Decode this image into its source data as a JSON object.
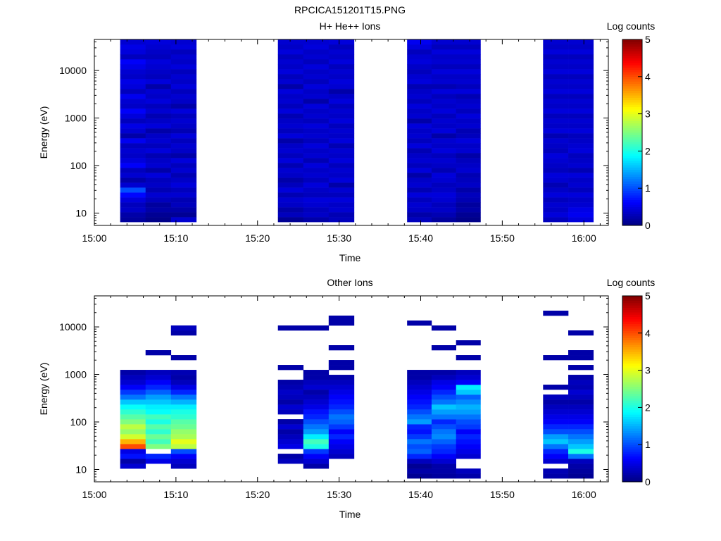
{
  "figure": {
    "title": "RPCICA151201T15.PNG"
  },
  "chart_data": [
    {
      "type": "heatmap",
      "title": "H+ He++ Ions",
      "xlabel": "Time",
      "ylabel": "Energy (eV)",
      "y_scale": "log",
      "x_range": [
        "15:00",
        "16:03"
      ],
      "y_range": [
        5.5,
        45000
      ],
      "x_ticks": [
        "15:00",
        "15:10",
        "15:20",
        "15:30",
        "15:40",
        "15:50",
        "16:00"
      ],
      "y_ticks": [
        "10",
        "100",
        "1000",
        "10000"
      ],
      "colorbar": {
        "label": "Log counts",
        "range": [
          0,
          5
        ],
        "ticks": [
          "0",
          "1",
          "2",
          "3",
          "4",
          "5"
        ],
        "colormap": "jet"
      },
      "grid": false,
      "sweeps": [
        {
          "t_start": "15:03:10",
          "t_end": "15:12:30",
          "columns": 3,
          "log_counts": [
            [
              0.15,
              0.2,
              0.35,
              0.3,
              0.45,
              0.65,
              1.0,
              0.4,
              0.2,
              0.4,
              0.3,
              0.6,
              0.45,
              0.35,
              0.4,
              0.3,
              0.55,
              0.2,
              0.4,
              0.5,
              0.3,
              0.45,
              0.6,
              0.35,
              0.4,
              0.55,
              0.3,
              0.45,
              0.5,
              0.35,
              0.4,
              0.5,
              0.6,
              0.3,
              0.45,
              0.5,
              0.4
            ],
            [
              0.05,
              0.1,
              0.2,
              0.15,
              0.3,
              0.4,
              0.25,
              0.35,
              0.3,
              0.45,
              0.2,
              0.4,
              0.35,
              0.25,
              0.45,
              0.3,
              0.4,
              0.35,
              0.2,
              0.45,
              0.35,
              0.25,
              0.4,
              0.3,
              0.45,
              0.35,
              0.4,
              0.2,
              0.45,
              0.3,
              0.35,
              0.4,
              0.45,
              0.3,
              0.35,
              0.4,
              0.45
            ],
            [
              0.4,
              0.1,
              0.2,
              0.3,
              0.25,
              0.4,
              0.3,
              0.45,
              0.35,
              0.25,
              0.4,
              0.3,
              0.45,
              0.2,
              0.35,
              0.4,
              0.3,
              0.45,
              0.25,
              0.35,
              0.4,
              0.3,
              0.45,
              0.2,
              0.35,
              0.4,
              0.3,
              0.45,
              0.35,
              0.4,
              0.3,
              0.45,
              0.35,
              0.4,
              0.3,
              0.45,
              0.4
            ]
          ]
        },
        {
          "t_start": "15:22:30",
          "t_end": "15:31:50",
          "columns": 3,
          "log_counts": [
            [
              0.1,
              0.3,
              0.2,
              0.35,
              0.4,
              0.25,
              0.45,
              0.3,
              0.2,
              0.35,
              0.4,
              0.25,
              0.45,
              0.3,
              0.4,
              0.35,
              0.2,
              0.45,
              0.3,
              0.4,
              0.35,
              0.25,
              0.45,
              0.3,
              0.4,
              0.35,
              0.45,
              0.2,
              0.4,
              0.3,
              0.45,
              0.35,
              0.4,
              0.3,
              0.45,
              0.35,
              0.4
            ],
            [
              0.2,
              0.35,
              0.3,
              0.4,
              0.45,
              0.3,
              0.35,
              0.45,
              0.3,
              0.4,
              0.35,
              0.45,
              0.25,
              0.4,
              0.35,
              0.45,
              0.3,
              0.4,
              0.35,
              0.45,
              0.3,
              0.4,
              0.35,
              0.45,
              0.2,
              0.4,
              0.35,
              0.45,
              0.3,
              0.4,
              0.35,
              0.45,
              0.3,
              0.4,
              0.35,
              0.45,
              0.4
            ],
            [
              0.3,
              0.25,
              0.4,
              0.35,
              0.45,
              0.3,
              0.4,
              0.2,
              0.45,
              0.35,
              0.4,
              0.3,
              0.45,
              0.35,
              0.4,
              0.25,
              0.45,
              0.35,
              0.4,
              0.3,
              0.45,
              0.35,
              0.4,
              0.3,
              0.45,
              0.35,
              0.2,
              0.4,
              0.45,
              0.35,
              0.4,
              0.3,
              0.45,
              0.35,
              0.4,
              0.3,
              0.45
            ]
          ]
        },
        {
          "t_start": "15:38:20",
          "t_end": "15:47:20",
          "columns": 3,
          "log_counts": [
            [
              0.3,
              0.2,
              0.35,
              0.4,
              0.3,
              0.45,
              0.25,
              0.4,
              0.35,
              0.2,
              0.45,
              0.3,
              0.4,
              0.35,
              0.25,
              0.45,
              0.3,
              0.4,
              0.35,
              0.45,
              0.2,
              0.4,
              0.35,
              0.45,
              0.3,
              0.4,
              0.35,
              0.25,
              0.45,
              0.4,
              0.3,
              0.35,
              0.45,
              0.4,
              0.3,
              0.45,
              0.55
            ],
            [
              0.15,
              0.25,
              0.35,
              0.3,
              0.4,
              0.45,
              0.35,
              0.3,
              0.4,
              0.45,
              0.25,
              0.35,
              0.4,
              0.3,
              0.45,
              0.35,
              0.4,
              0.2,
              0.45,
              0.35,
              0.4,
              0.3,
              0.45,
              0.35,
              0.4,
              0.3,
              0.45,
              0.25,
              0.4,
              0.35,
              0.45,
              0.3,
              0.4,
              0.35,
              0.45,
              0.3,
              0.4
            ],
            [
              0.05,
              0.1,
              0.2,
              0.15,
              0.25,
              0.3,
              0.2,
              0.35,
              0.3,
              0.25,
              0.4,
              0.35,
              0.3,
              0.2,
              0.4,
              0.35,
              0.45,
              0.3,
              0.25,
              0.4,
              0.35,
              0.45,
              0.3,
              0.4,
              0.35,
              0.25,
              0.45,
              0.3,
              0.4,
              0.35,
              0.45,
              0.3,
              0.4,
              0.35,
              0.45,
              0.3,
              0.4
            ]
          ]
        },
        {
          "t_start": "15:55:00",
          "t_end": "16:01:10",
          "columns": 2,
          "log_counts": [
            [
              0.3,
              0.45,
              0.35,
              0.4,
              0.3,
              0.45,
              0.35,
              0.25,
              0.4,
              0.45,
              0.3,
              0.35,
              0.4,
              0.45,
              0.3,
              0.35,
              0.4,
              0.25,
              0.45,
              0.35,
              0.4,
              0.3,
              0.45,
              0.35,
              0.4,
              0.3,
              0.45,
              0.35,
              0.4,
              0.3,
              0.45,
              0.35,
              0.4,
              0.3,
              0.45,
              0.35,
              0.4
            ],
            [
              0.45,
              0.55,
              0.5,
              0.4,
              0.35,
              0.45,
              0.3,
              0.4,
              0.35,
              0.45,
              0.25,
              0.4,
              0.35,
              0.3,
              0.45,
              0.4,
              0.35,
              0.3,
              0.45,
              0.35,
              0.4,
              0.3,
              0.45,
              0.35,
              0.4,
              0.3,
              0.45,
              0.35,
              0.4,
              0.3,
              0.45,
              0.35,
              0.4,
              0.3,
              0.45,
              0.35,
              0.4
            ]
          ]
        }
      ]
    },
    {
      "type": "heatmap",
      "title": "Other Ions",
      "xlabel": "Time",
      "ylabel": "Energy (eV)",
      "y_scale": "log",
      "x_range": [
        "15:00",
        "16:03"
      ],
      "y_range": [
        5.5,
        45000
      ],
      "x_ticks": [
        "15:00",
        "15:10",
        "15:20",
        "15:30",
        "15:40",
        "15:50",
        "16:00"
      ],
      "y_ticks": [
        "10",
        "100",
        "1000",
        "10000"
      ],
      "colorbar": {
        "label": "Log counts",
        "range": [
          0,
          5
        ],
        "ticks": [
          "0",
          "1",
          "2",
          "3",
          "4",
          "5"
        ],
        "colormap": "jet"
      },
      "grid": false,
      "sweeps": [
        {
          "t_start": "15:03:10",
          "t_end": "15:12:30",
          "columns": 3,
          "log_counts": [
            [
              null,
              null,
              0.4,
              0.2,
              0.7,
              0.5,
              4.0,
              3.5,
              2.9,
              2.6,
              2.8,
              2.5,
              2.3,
              2.1,
              1.9,
              1.6,
              1.2,
              0.9,
              0.6,
              0.4,
              0.3,
              0.2,
              null,
              null,
              null,
              null,
              null,
              null,
              null,
              null,
              null,
              null,
              null,
              null,
              null,
              null,
              null
            ],
            [
              null,
              null,
              null,
              0.5,
              0.8,
              null,
              2.5,
              2.2,
              2.4,
              2.1,
              2.3,
              2.0,
              2.2,
              1.9,
              1.8,
              1.6,
              1.4,
              1.1,
              0.8,
              0.6,
              0.4,
              0.3,
              null,
              null,
              null,
              0.2,
              null,
              null,
              null,
              null,
              null,
              null,
              null,
              null,
              null,
              null,
              null
            ],
            [
              null,
              null,
              0.3,
              0.4,
              0.6,
              1.0,
              2.8,
              3.0,
              2.7,
              2.6,
              2.4,
              2.3,
              2.1,
              2.0,
              1.8,
              1.5,
              1.2,
              0.8,
              0.5,
              0.3,
              0.2,
              0.25,
              null,
              null,
              0.2,
              null,
              null,
              null,
              null,
              0.2,
              0.3,
              null,
              null,
              null,
              null,
              null,
              null
            ]
          ]
        },
        {
          "t_start": "15:22:30",
          "t_end": "15:31:50",
          "columns": 3,
          "log_counts": [
            [
              null,
              null,
              null,
              0.3,
              0.2,
              null,
              0.5,
              0.4,
              0.3,
              0.2,
              0.4,
              0.2,
              null,
              0.3,
              0.4,
              0.2,
              0.3,
              0.35,
              0.25,
              0.2,
              null,
              null,
              0.2,
              null,
              null,
              null,
              null,
              null,
              null,
              null,
              0.2,
              null,
              null,
              null,
              null,
              null,
              null
            ],
            [
              null,
              null,
              0.2,
              0.4,
              0.6,
              0.9,
              2.0,
              2.2,
              1.8,
              1.4,
              1.2,
              1.0,
              0.8,
              0.7,
              0.5,
              0.4,
              0.3,
              0.2,
              0.4,
              0.3,
              0.2,
              0.2,
              null,
              null,
              null,
              null,
              null,
              null,
              null,
              null,
              0.2,
              null,
              null,
              null,
              null,
              null,
              null
            ],
            [
              null,
              null,
              null,
              null,
              0.3,
              0.4,
              0.5,
              0.6,
              0.8,
              0.6,
              0.9,
              1.1,
              1.2,
              1.0,
              0.8,
              0.7,
              0.6,
              0.5,
              0.4,
              0.3,
              0.2,
              null,
              0.2,
              0.2,
              null,
              null,
              0.2,
              null,
              null,
              null,
              null,
              0.2,
              0.2,
              null,
              null,
              null,
              null
            ]
          ]
        },
        {
          "t_start": "15:38:20",
          "t_end": "15:47:20",
          "columns": 3,
          "log_counts": [
            [
              0.1,
              0.2,
              0.1,
              0.3,
              0.8,
              1.1,
              1.0,
              1.2,
              0.9,
              0.7,
              0.8,
              1.4,
              1.2,
              1.0,
              0.8,
              0.7,
              0.6,
              0.5,
              0.4,
              0.3,
              0.2,
              0.2,
              null,
              null,
              null,
              null,
              null,
              null,
              null,
              null,
              null,
              0.2,
              null,
              null,
              null,
              null,
              null
            ],
            [
              0.15,
              0.2,
              0.2,
              0.4,
              0.6,
              0.8,
              0.9,
              1.1,
              1.3,
              1.2,
              1.0,
              0.8,
              1.2,
              1.4,
              1.6,
              1.2,
              1.0,
              0.8,
              0.6,
              0.5,
              0.3,
              0.2,
              null,
              null,
              null,
              null,
              0.2,
              null,
              null,
              null,
              0.2,
              null,
              null,
              null,
              null,
              null,
              null
            ],
            [
              0.2,
              0.3,
              null,
              null,
              0.4,
              0.5,
              0.6,
              0.7,
              0.8,
              0.6,
              0.9,
              1.0,
              1.2,
              1.4,
              1.5,
              1.3,
              1.1,
              1.6,
              1.8,
              0.6,
              0.4,
              0.3,
              null,
              null,
              0.2,
              null,
              null,
              0.2,
              null,
              null,
              null,
              null,
              null,
              null,
              null,
              null,
              null
            ]
          ]
        },
        {
          "t_start": "15:55:00",
          "t_end": "16:01:10",
          "columns": 2,
          "log_counts": [
            [
              0.2,
              0.25,
              null,
              0.4,
              0.6,
              0.8,
              1.2,
              1.6,
              1.4,
              1.0,
              0.8,
              0.6,
              0.5,
              0.4,
              0.3,
              0.2,
              0.3,
              null,
              0.2,
              null,
              null,
              null,
              null,
              null,
              0.2,
              null,
              null,
              null,
              null,
              null,
              null,
              null,
              null,
              0.2,
              null,
              null,
              null
            ],
            [
              0.1,
              0.15,
              0.2,
              0.3,
              1.2,
              2.0,
              1.6,
              1.4,
              1.2,
              1.0,
              0.8,
              0.6,
              0.5,
              0.4,
              0.3,
              0.2,
              0.3,
              0.4,
              0.25,
              0.3,
              0.2,
              null,
              0.2,
              null,
              0.2,
              0.2,
              null,
              null,
              null,
              0.2,
              null,
              null,
              null,
              null,
              null,
              null,
              null
            ]
          ]
        }
      ]
    }
  ]
}
